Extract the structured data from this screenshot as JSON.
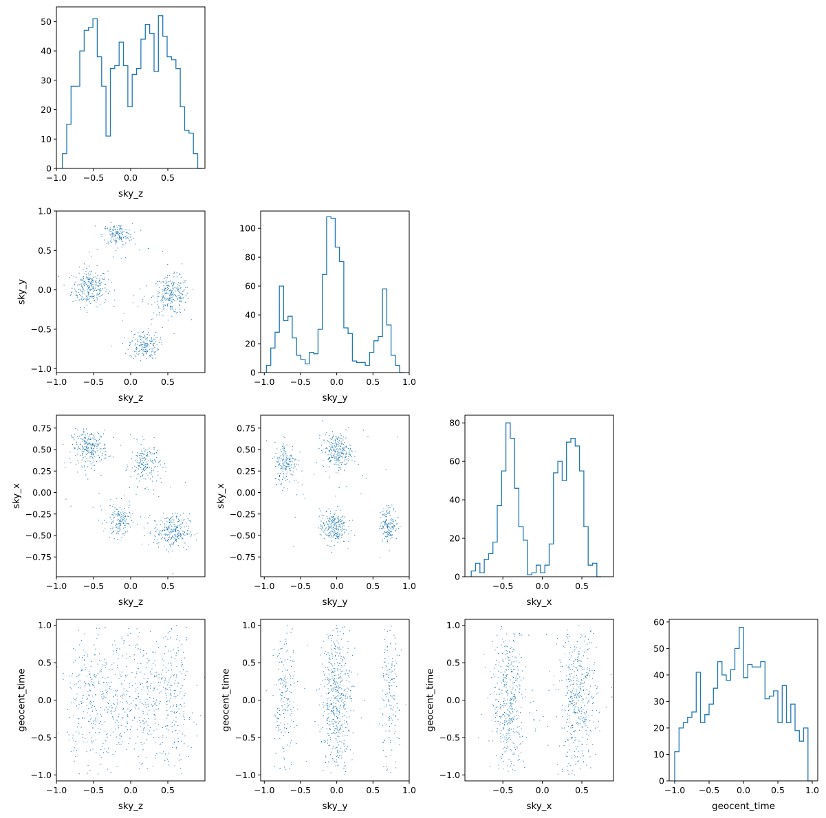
{
  "figure": {
    "type": "corner-plot",
    "parameters": [
      "sky_z",
      "sky_y",
      "sky_x",
      "geocent_time"
    ],
    "color": "#1f77b4"
  },
  "chart_data": [
    {
      "id": "hist-sky_z",
      "type": "histogram",
      "row": 0,
      "col": 0,
      "xlabel": "sky_z",
      "ylabel": "",
      "xlim": [
        -1.0,
        1.0
      ],
      "ylim": [
        0,
        55
      ],
      "xticks": [
        "−1.0",
        "−0.5",
        "0.0",
        "0.5"
      ],
      "xtick_values": [
        -1.0,
        -0.5,
        0.0,
        0.5
      ],
      "yticks": [
        "0",
        "10",
        "20",
        "30",
        "40",
        "50"
      ],
      "ytick_values": [
        0,
        10,
        20,
        30,
        40,
        50
      ],
      "bin_start": -0.92,
      "bin_width": 0.0588,
      "counts": [
        5,
        15,
        28,
        28,
        40,
        47,
        48,
        51,
        38,
        28,
        11,
        34,
        35,
        43,
        35,
        21,
        32,
        34,
        44,
        49,
        46,
        33,
        52,
        45,
        38,
        37,
        34,
        21,
        13,
        12,
        5,
        0
      ]
    },
    {
      "id": "scatter-sky_z-sky_y",
      "type": "scatter",
      "row": 1,
      "col": 0,
      "xlabel": "sky_z",
      "ylabel": "sky_y",
      "xlim": [
        -1.0,
        1.0
      ],
      "ylim": [
        -1.05,
        1.0
      ],
      "xticks": [
        "−1.0",
        "−0.5",
        "0.0",
        "0.5"
      ],
      "xtick_values": [
        -1.0,
        -0.5,
        0.0,
        0.5
      ],
      "yticks": [
        "−1.0",
        "−0.5",
        "0.0",
        "0.5",
        "1.0"
      ],
      "ytick_values": [
        -1.0,
        -0.5,
        0.0,
        0.5,
        1.0
      ],
      "clusters": [
        {
          "cx": -0.55,
          "cy": 0.03,
          "sx": 0.12,
          "sy": 0.12,
          "n": 260
        },
        {
          "cx": 0.55,
          "cy": -0.07,
          "sx": 0.12,
          "sy": 0.12,
          "n": 250
        },
        {
          "cx": -0.18,
          "cy": 0.7,
          "sx": 0.1,
          "sy": 0.07,
          "n": 150
        },
        {
          "cx": 0.18,
          "cy": -0.7,
          "sx": 0.1,
          "sy": 0.09,
          "n": 170
        },
        {
          "cx": 0.0,
          "cy": 0.0,
          "sx": 0.5,
          "sy": 0.5,
          "n": 40
        }
      ]
    },
    {
      "id": "hist-sky_y",
      "type": "histogram",
      "row": 1,
      "col": 1,
      "xlabel": "sky_y",
      "ylabel": "",
      "xlim": [
        -1.05,
        1.0
      ],
      "ylim": [
        0,
        112
      ],
      "xticks": [
        "−1.0",
        "−0.5",
        "0.0",
        "0.5",
        "1.0"
      ],
      "xtick_values": [
        -1.0,
        -0.5,
        0.0,
        0.5,
        1.0
      ],
      "yticks": [
        "0",
        "20",
        "40",
        "60",
        "80",
        "100"
      ],
      "ytick_values": [
        0,
        20,
        40,
        60,
        80,
        100
      ],
      "bin_start": -0.97,
      "bin_width": 0.0593,
      "counts": [
        5,
        17,
        28,
        60,
        36,
        39,
        24,
        12,
        9,
        6,
        14,
        13,
        30,
        68,
        108,
        107,
        87,
        77,
        31,
        27,
        8,
        7,
        7,
        5,
        14,
        22,
        25,
        58,
        33,
        12,
        5,
        0
      ]
    },
    {
      "id": "scatter-sky_z-sky_x",
      "type": "scatter",
      "row": 2,
      "col": 0,
      "xlabel": "sky_z",
      "ylabel": "sky_x",
      "xlim": [
        -1.0,
        1.0
      ],
      "ylim": [
        -0.98,
        0.9
      ],
      "xticks": [
        "−1.0",
        "−0.5",
        "0.0",
        "0.5"
      ],
      "xtick_values": [
        -1.0,
        -0.5,
        0.0,
        0.5
      ],
      "yticks": [
        "−0.75",
        "−0.50",
        "−0.25",
        "0.00",
        "0.25",
        "0.50",
        "0.75"
      ],
      "ytick_values": [
        -0.75,
        -0.5,
        -0.25,
        0.0,
        0.25,
        0.5,
        0.75
      ],
      "clusters": [
        {
          "cx": -0.55,
          "cy": 0.52,
          "sx": 0.12,
          "sy": 0.1,
          "n": 240
        },
        {
          "cx": 0.2,
          "cy": 0.33,
          "sx": 0.1,
          "sy": 0.12,
          "n": 170
        },
        {
          "cx": -0.15,
          "cy": -0.33,
          "sx": 0.08,
          "sy": 0.1,
          "n": 150
        },
        {
          "cx": 0.55,
          "cy": -0.45,
          "sx": 0.12,
          "sy": 0.1,
          "n": 250
        },
        {
          "cx": 0.0,
          "cy": 0.0,
          "sx": 0.5,
          "sy": 0.5,
          "n": 40
        }
      ]
    },
    {
      "id": "scatter-sky_y-sky_x",
      "type": "scatter",
      "row": 2,
      "col": 1,
      "xlabel": "sky_y",
      "ylabel": "sky_x",
      "xlim": [
        -1.05,
        1.0
      ],
      "ylim": [
        -0.98,
        0.9
      ],
      "xticks": [
        "−1.0",
        "−0.5",
        "0.0",
        "0.5",
        "1.0"
      ],
      "xtick_values": [
        -1.0,
        -0.5,
        0.0,
        0.5,
        1.0
      ],
      "yticks": [
        "−0.75",
        "−0.50",
        "−0.25",
        "0.00",
        "0.25",
        "0.50",
        "0.75"
      ],
      "ytick_values": [
        -0.75,
        -0.5,
        -0.25,
        0.0,
        0.25,
        0.5,
        0.75
      ],
      "clusters": [
        {
          "cx": -0.7,
          "cy": 0.35,
          "sx": 0.08,
          "sy": 0.12,
          "n": 170
        },
        {
          "cx": 0.0,
          "cy": 0.48,
          "sx": 0.1,
          "sy": 0.1,
          "n": 240
        },
        {
          "cx": -0.05,
          "cy": -0.4,
          "sx": 0.09,
          "sy": 0.1,
          "n": 230
        },
        {
          "cx": 0.72,
          "cy": -0.37,
          "sx": 0.06,
          "sy": 0.1,
          "n": 150
        },
        {
          "cx": 0.0,
          "cy": 0.0,
          "sx": 0.5,
          "sy": 0.5,
          "n": 40
        }
      ]
    },
    {
      "id": "hist-sky_x",
      "type": "histogram",
      "row": 2,
      "col": 2,
      "xlabel": "sky_x",
      "ylabel": "",
      "xlim": [
        -0.98,
        0.9
      ],
      "ylim": [
        0,
        84
      ],
      "xticks": [
        "−0.5",
        "0.0",
        "0.5"
      ],
      "xtick_values": [
        -0.5,
        0.0,
        0.5
      ],
      "yticks": [
        "0",
        "20",
        "40",
        "60",
        "80"
      ],
      "ytick_values": [
        0,
        20,
        40,
        60,
        80
      ],
      "bin_start": -0.9,
      "bin_width": 0.0548,
      "counts": [
        3,
        7,
        2,
        9,
        12,
        18,
        37,
        55,
        80,
        72,
        46,
        26,
        19,
        1,
        2,
        6,
        2,
        6,
        17,
        54,
        60,
        50,
        70,
        72,
        68,
        55,
        26,
        6,
        7,
        0
      ]
    },
    {
      "id": "scatter-sky_z-geocent_time",
      "type": "scatter",
      "row": 3,
      "col": 0,
      "xlabel": "sky_z",
      "ylabel": "geocent_time",
      "xlim": [
        -1.0,
        1.0
      ],
      "ylim": [
        -1.08,
        1.08
      ],
      "xticks": [
        "−1.0",
        "−0.5",
        "0.0",
        "0.5"
      ],
      "xtick_values": [
        -1.0,
        -0.5,
        0.0,
        0.5
      ],
      "yticks": [
        "−1.0",
        "−0.5",
        "0.0",
        "0.5",
        "1.0"
      ],
      "ytick_values": [
        -1.0,
        -0.5,
        0.0,
        0.5,
        1.0
      ],
      "clusters": [
        {
          "cx": -0.55,
          "cy": 0.0,
          "sx": 0.15,
          "sy": 0.5,
          "n": 260
        },
        {
          "cx": 0.55,
          "cy": 0.0,
          "sx": 0.15,
          "sy": 0.5,
          "n": 250
        },
        {
          "cx": -0.15,
          "cy": 0.0,
          "sx": 0.12,
          "sy": 0.5,
          "n": 160
        },
        {
          "cx": 0.18,
          "cy": 0.0,
          "sx": 0.12,
          "sy": 0.5,
          "n": 170
        }
      ]
    },
    {
      "id": "scatter-sky_y-geocent_time",
      "type": "scatter",
      "row": 3,
      "col": 1,
      "xlabel": "sky_y",
      "ylabel": "geocent_time",
      "xlim": [
        -1.05,
        1.0
      ],
      "ylim": [
        -1.08,
        1.08
      ],
      "xticks": [
        "−1.0",
        "−0.5",
        "0.0",
        "0.5",
        "1.0"
      ],
      "xtick_values": [
        -1.0,
        -0.5,
        0.0,
        0.5,
        1.0
      ],
      "yticks": [
        "−1.0",
        "−0.5",
        "0.0",
        "0.5",
        "1.0"
      ],
      "ytick_values": [
        -1.0,
        -0.5,
        0.0,
        0.5,
        1.0
      ],
      "clusters": [
        {
          "cx": -0.72,
          "cy": 0.0,
          "sx": 0.07,
          "sy": 0.5,
          "n": 180
        },
        {
          "cx": 0.0,
          "cy": 0.0,
          "sx": 0.1,
          "sy": 0.5,
          "n": 480
        },
        {
          "cx": 0.72,
          "cy": 0.0,
          "sx": 0.07,
          "sy": 0.5,
          "n": 160
        },
        {
          "cx": 0.0,
          "cy": 0.0,
          "sx": 0.45,
          "sy": 0.5,
          "n": 40
        }
      ]
    },
    {
      "id": "scatter-sky_x-geocent_time",
      "type": "scatter",
      "row": 3,
      "col": 2,
      "xlabel": "sky_x",
      "ylabel": "geocent_time",
      "xlim": [
        -0.98,
        0.9
      ],
      "ylim": [
        -1.08,
        1.08
      ],
      "xticks": [
        "−0.5",
        "0.0",
        "0.5"
      ],
      "xtick_values": [
        -0.5,
        0.0,
        0.5
      ],
      "yticks": [
        "−1.0",
        "−0.5",
        "0.0",
        "0.5",
        "1.0"
      ],
      "ytick_values": [
        -1.0,
        -0.5,
        0.0,
        0.5,
        1.0
      ],
      "clusters": [
        {
          "cx": -0.42,
          "cy": 0.0,
          "sx": 0.1,
          "sy": 0.5,
          "n": 400
        },
        {
          "cx": 0.45,
          "cy": 0.0,
          "sx": 0.12,
          "sy": 0.5,
          "n": 420
        },
        {
          "cx": 0.0,
          "cy": 0.0,
          "sx": 0.45,
          "sy": 0.5,
          "n": 40
        }
      ]
    },
    {
      "id": "hist-geocent_time",
      "type": "histogram",
      "row": 3,
      "col": 3,
      "xlabel": "geocent_time",
      "ylabel": "",
      "xlim": [
        -1.08,
        1.08
      ],
      "ylim": [
        0,
        61
      ],
      "xticks": [
        "−1.0",
        "−0.5",
        "0.0",
        "0.5",
        "1.0"
      ],
      "xtick_values": [
        -1.0,
        -0.5,
        0.0,
        0.5,
        1.0
      ],
      "yticks": [
        "0",
        "10",
        "20",
        "30",
        "40",
        "50",
        "60"
      ],
      "ytick_values": [
        0,
        10,
        20,
        30,
        40,
        50,
        60
      ],
      "bin_start": -1.0,
      "bin_width": 0.0625,
      "counts": [
        11,
        20,
        22,
        24,
        26,
        41,
        22,
        25,
        29,
        35,
        45,
        40,
        38,
        42,
        50,
        58,
        39,
        44,
        43,
        43,
        45,
        31,
        32,
        34,
        22,
        36,
        22,
        29,
        19,
        15,
        20,
        0
      ]
    }
  ]
}
